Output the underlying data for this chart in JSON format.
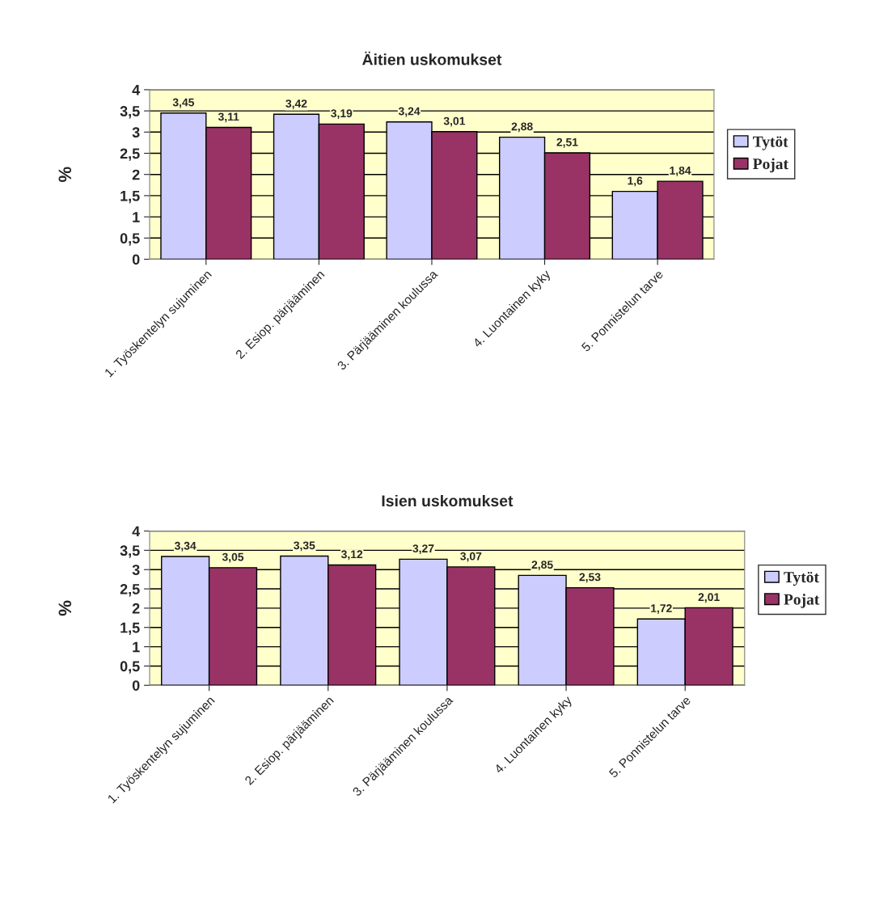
{
  "chart_data": [
    {
      "type": "bar",
      "title": "Äitien uskomukset",
      "ylabel": "%",
      "categories": [
        "1. Työskentelyn sujuminen",
        "2. Esiop. pärjääminen",
        "3. Pärjääminen koulussa",
        "4. Luontainen kyky",
        "5. Ponnistelun tarve"
      ],
      "series": [
        {
          "name": "Tytöt",
          "color": "#ccccff",
          "values": [
            3.45,
            3.42,
            3.24,
            2.88,
            1.6
          ],
          "value_labels": [
            "3,45",
            "3,42",
            "3,24",
            "2,88",
            "1,6"
          ]
        },
        {
          "name": "Pojat",
          "color": "#993366",
          "values": [
            3.11,
            3.19,
            3.01,
            2.51,
            1.84
          ],
          "value_labels": [
            "3,11",
            "3,19",
            "3,01",
            "2,51",
            "1,84"
          ]
        }
      ],
      "ylim": [
        0,
        4
      ],
      "yticks": [
        0,
        {
          "value": 0.5,
          "label": "0,5"
        },
        1,
        {
          "value": 1.5,
          "label": "1,5"
        },
        2,
        {
          "value": 2.5,
          "label": "2,5"
        },
        3,
        {
          "value": 3.5,
          "label": "3,5"
        },
        4
      ],
      "grid": "y",
      "legend": "right"
    },
    {
      "type": "bar",
      "title": "Isien uskomukset",
      "ylabel": "%",
      "categories": [
        "1. Työskentelyn sujuminen",
        "2. Esiop. pärjääminen",
        "3. Pärjääminen koulussa",
        "4. Luontainen kyky",
        "5. Ponnistelun tarve"
      ],
      "series": [
        {
          "name": "Tytöt",
          "color": "#ccccff",
          "values": [
            3.34,
            3.35,
            3.27,
            2.85,
            1.72
          ],
          "value_labels": [
            "3,34",
            "3,35",
            "3,27",
            "2,85",
            "1,72"
          ]
        },
        {
          "name": "Pojat",
          "color": "#993366",
          "values": [
            3.05,
            3.12,
            3.07,
            2.53,
            2.01
          ],
          "value_labels": [
            "3,05",
            "3,12",
            "3,07",
            "2,53",
            "2,01"
          ]
        }
      ],
      "ylim": [
        0,
        4
      ],
      "yticks": [
        0,
        {
          "value": 0.5,
          "label": "0,5"
        },
        1,
        {
          "value": 1.5,
          "label": "1,5"
        },
        2,
        {
          "value": 2.5,
          "label": "2,5"
        },
        3,
        {
          "value": 3.5,
          "label": "3,5"
        },
        4
      ],
      "grid": "y",
      "legend": "right"
    }
  ]
}
